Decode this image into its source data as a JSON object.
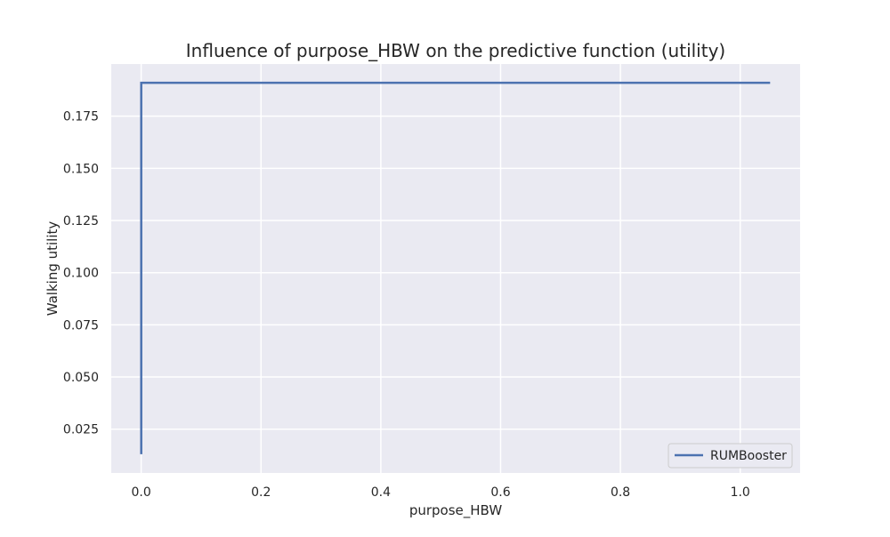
{
  "chart_data": {
    "type": "line",
    "title": "Influence of purpose_HBW on the predictive function (utility)",
    "xlabel": "purpose_HBW",
    "ylabel": "Walking utility",
    "xlim": [
      -0.05,
      1.1
    ],
    "ylim": [
      0.004,
      0.2
    ],
    "x_ticks": [
      0.0,
      0.2,
      0.4,
      0.6,
      0.8,
      1.0
    ],
    "x_tick_labels": [
      "0.0",
      "0.2",
      "0.4",
      "0.6",
      "0.8",
      "1.0"
    ],
    "y_ticks": [
      0.025,
      0.05,
      0.075,
      0.1,
      0.125,
      0.15,
      0.175
    ],
    "y_tick_labels": [
      "0.025",
      "0.050",
      "0.075",
      "0.100",
      "0.125",
      "0.150",
      "0.175"
    ],
    "grid": true,
    "legend_position": "lower-right",
    "series": [
      {
        "name": "RUMBooster",
        "color": "#4c72b0",
        "x": [
          0.0,
          0.0,
          1.05
        ],
        "y": [
          0.013,
          0.191,
          0.191
        ]
      }
    ]
  }
}
